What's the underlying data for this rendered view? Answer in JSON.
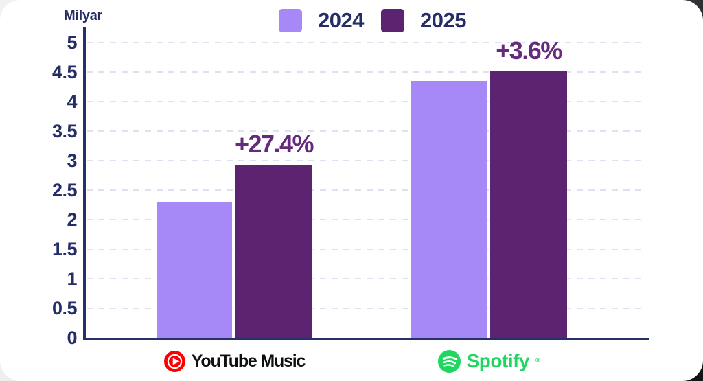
{
  "chart_data": {
    "type": "bar",
    "title": "",
    "y_axis_label": "Milyar",
    "ylim": [
      0,
      5
    ],
    "tick_step": 0.5,
    "y_ticks": [
      "0",
      "0.5",
      "1",
      "1.5",
      "2",
      "2.5",
      "3",
      "3.5",
      "4",
      "4.5",
      "5"
    ],
    "grid": "horizontal-dashed",
    "legend_position": "top-center",
    "categories": [
      "YouTube Music",
      "Spotify"
    ],
    "series": [
      {
        "name": "2024",
        "color": "#a688f7",
        "values": [
          2.3,
          4.35
        ]
      },
      {
        "name": "2025",
        "color": "#5c2470",
        "values": [
          2.93,
          4.51
        ]
      }
    ],
    "annotations": [
      {
        "category": "YouTube Music",
        "series": "2025",
        "text": "+27.4%"
      },
      {
        "category": "Spotify",
        "series": "2025",
        "text": "+3.6%"
      }
    ]
  },
  "legend": {
    "items": [
      {
        "label": "2024",
        "color": "#a688f7"
      },
      {
        "label": "2025",
        "color": "#5c2470"
      }
    ]
  },
  "x_labels": {
    "youtube": {
      "brand": "YouTube Music"
    },
    "spotify": {
      "brand": "Spotify",
      "registered_mark": "®"
    }
  },
  "colors": {
    "navy_text": "#242d66",
    "axis_navy": "#25316b",
    "light_purple": "#a688f7",
    "dark_purple": "#5c2470",
    "annotation_purple": "#652a7b",
    "gridline": "#dde2f1",
    "youtube_red": "#ff0000",
    "spotify_green": "#1ed760",
    "card_background": "#ffffff"
  }
}
